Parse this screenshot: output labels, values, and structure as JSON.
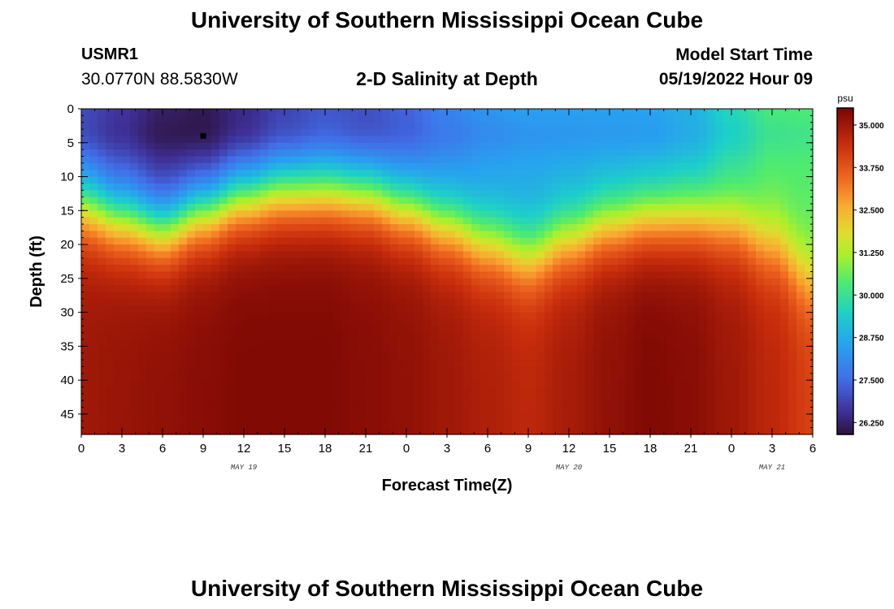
{
  "header": {
    "title": "University of Southern Mississippi Ocean Cube",
    "station": "USMR1",
    "coordinates": "30.0770N  88.5830W",
    "subtitle": "2-D Salinity at Depth",
    "start_label": "Model Start Time",
    "start_value": "05/19/2022 Hour 09"
  },
  "footer": {
    "title": "University of Southern Mississippi Ocean Cube"
  },
  "chart_data": {
    "type": "heatmap",
    "title": "2-D Salinity at Depth",
    "xlabel": "Forecast Time(Z)",
    "ylabel": "Depth (ft)",
    "x_range": [
      0,
      54
    ],
    "y_range": [
      0,
      48
    ],
    "x_tick_values": [
      0,
      3,
      6,
      9,
      12,
      15,
      18,
      21,
      24,
      27,
      30,
      33,
      36,
      39,
      42,
      45,
      48,
      51,
      54
    ],
    "x_tick_labels": [
      "0",
      "3",
      "6",
      "9",
      "12",
      "15",
      "18",
      "21",
      "0",
      "3",
      "6",
      "9",
      "12",
      "15",
      "18",
      "21",
      "0",
      "3",
      "6"
    ],
    "y_ticks": [
      0,
      5,
      10,
      15,
      20,
      25,
      30,
      35,
      40,
      45
    ],
    "date_labels": [
      {
        "text": "MAY 19",
        "x": 12
      },
      {
        "text": "MAY 20",
        "x": 36
      },
      {
        "text": "MAY 21",
        "x": 51
      }
    ],
    "colorbar": {
      "unit": "psu",
      "min": 25.9,
      "max": 35.5,
      "ticks": [
        "35.000",
        "33.750",
        "32.500",
        "31.250",
        "30.000",
        "28.750",
        "27.500",
        "26.250"
      ],
      "tick_values": [
        35.0,
        33.75,
        32.5,
        31.25,
        30.0,
        28.75,
        27.5,
        26.25
      ]
    },
    "surface_salinity": {
      "hours": [
        0,
        3,
        6,
        9,
        12,
        15,
        18,
        21,
        24,
        27,
        30,
        33,
        36,
        39,
        42,
        45,
        48,
        51,
        54
      ],
      "values": [
        26.9,
        26.6,
        26.2,
        26.0,
        26.3,
        26.7,
        27.0,
        26.9,
        27.3,
        27.9,
        28.3,
        28.5,
        28.5,
        28.5,
        28.5,
        28.8,
        29.6,
        30.3,
        30.4
      ]
    },
    "bottom_salinity": {
      "hours": [
        0,
        3,
        6,
        9,
        12,
        15,
        18,
        21,
        24,
        27,
        30,
        33,
        36,
        39,
        42,
        45,
        48,
        51,
        54
      ],
      "values": [
        35.0,
        35.1,
        35.2,
        35.3,
        35.4,
        35.4,
        35.4,
        35.3,
        35.2,
        35.0,
        34.8,
        34.6,
        34.9,
        35.2,
        35.4,
        35.3,
        35.0,
        34.6,
        34.1
      ]
    },
    "halocline_depth_ft": {
      "hours": [
        0,
        3,
        6,
        9,
        12,
        15,
        18,
        21,
        24,
        27,
        30,
        33,
        36,
        39,
        42,
        45,
        48,
        51,
        54
      ],
      "values": [
        14.0,
        16.0,
        17.5,
        15.0,
        13.0,
        12.0,
        12.0,
        12.5,
        14.5,
        17.0,
        19.5,
        21.5,
        19.0,
        17.0,
        16.0,
        16.0,
        17.0,
        20.0,
        25.0
      ]
    },
    "marker": {
      "hour": 9,
      "depth_ft": 4
    }
  }
}
